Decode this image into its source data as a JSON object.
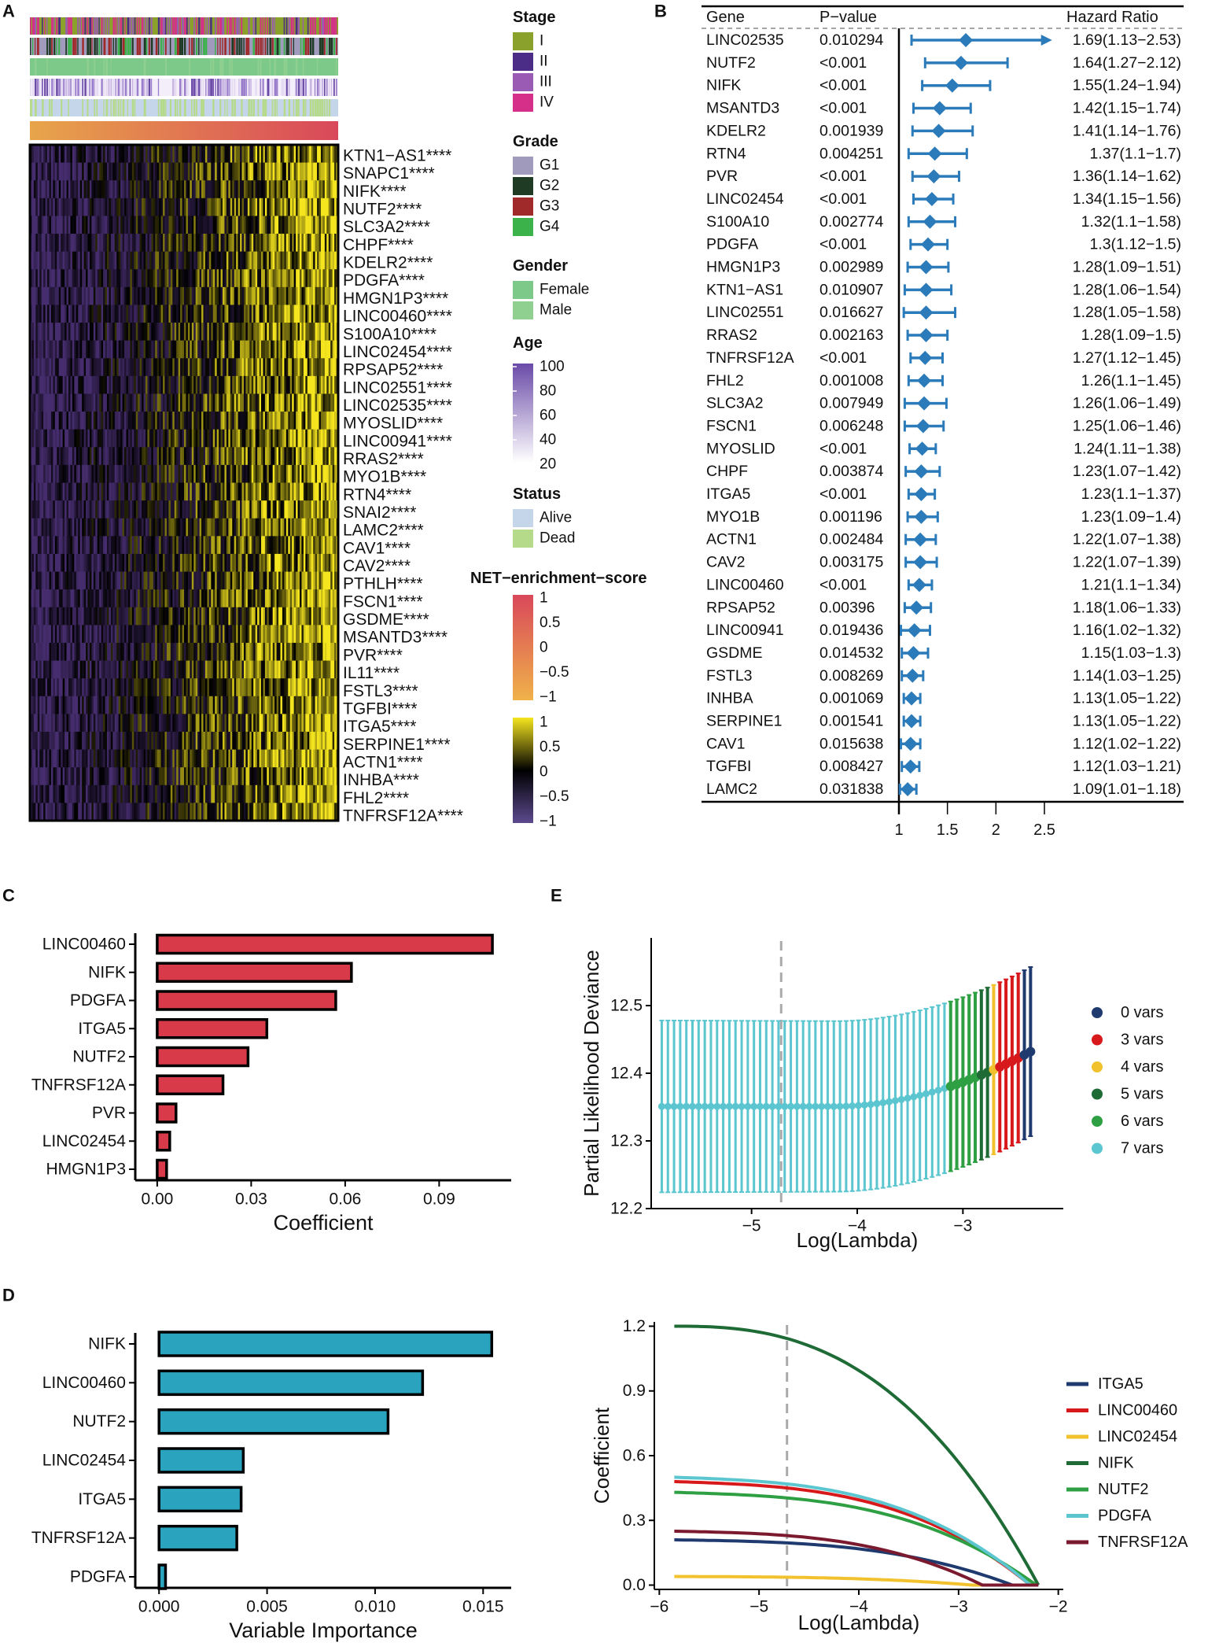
{
  "panel_labels": [
    "A",
    "B",
    "C",
    "D",
    "E"
  ],
  "colors": {
    "forest": "#2b7bba",
    "bar_c": "#d93a49",
    "bar_d": "#2aa3bf",
    "heat_low": "#2a1a4a",
    "heat_mid": "#000000",
    "heat_high": "#f5e51f"
  },
  "chart_data": [
    {
      "id": "A",
      "type": "heatmap",
      "genes": [
        "KTN1−AS1****",
        "SNAPC1****",
        "NIFK****",
        "NUTF2****",
        "SLC3A2****",
        "CHPF****",
        "KDELR2****",
        "PDGFA****",
        "HMGN1P3****",
        "LINC00460****",
        "S100A10****",
        "LINC02454****",
        "RPSAP52****",
        "LINC02551****",
        "LINC02535****",
        "MYOSLID****",
        "LINC00941****",
        "RRAS2****",
        "MYO1B****",
        "RTN4****",
        "SNAI2****",
        "LAMC2****",
        "CAV1****",
        "CAV2****",
        "PTHLH****",
        "FSCN1****",
        "GSDME****",
        "MSANTD3****",
        "PVR****",
        "IL11****",
        "FSTL3****",
        "TGFBI****",
        "ITGA5****",
        "SERPINE1****",
        "ACTN1****",
        "INHBA****",
        "FHL2****",
        "TNFRSF12A****"
      ],
      "legends": [
        {
          "title": "Stage",
          "items": [
            {
              "label": "I",
              "color": "#8aa12b"
            },
            {
              "label": "II",
              "color": "#4b2c86"
            },
            {
              "label": "III",
              "color": "#9a5bb5"
            },
            {
              "label": "IV",
              "color": "#d62f8a"
            }
          ]
        },
        {
          "title": "Grade",
          "items": [
            {
              "label": "G1",
              "color": "#a09abd"
            },
            {
              "label": "G2",
              "color": "#1f3b24"
            },
            {
              "label": "G3",
              "color": "#a02a2a"
            },
            {
              "label": "G4",
              "color": "#3bb34a"
            }
          ]
        },
        {
          "title": "Gender",
          "items": [
            {
              "label": "Female",
              "color": "#7cc98a"
            },
            {
              "label": "Male",
              "color": "#8fcf8f"
            }
          ]
        },
        {
          "title": "Status",
          "items": [
            {
              "label": "Alive",
              "color": "#c5d5ea"
            },
            {
              "label": "Dead",
              "color": "#b5db8a"
            }
          ]
        }
      ],
      "age_legend": {
        "title": "Age",
        "ticks": [
          "100",
          "80",
          "60",
          "40",
          "20"
        ]
      },
      "net_legend": {
        "title": "NET−enrichment−score",
        "ticks": [
          "1",
          "0.5",
          "0",
          "−0.5",
          "−1"
        ]
      },
      "expr_legend": {
        "ticks": [
          "1",
          "0.5",
          "0",
          "−0.5",
          "−1"
        ]
      }
    },
    {
      "id": "B",
      "type": "forest",
      "headers": {
        "gene": "Gene",
        "pvalue": "P−value",
        "hr": "Hazard Ratio"
      },
      "rows": [
        {
          "gene": "LINC02535",
          "p": "0.010294",
          "hr": 1.69,
          "lo": 1.13,
          "hi": 2.53,
          "label": "1.69(1.13−2.53)"
        },
        {
          "gene": "NUTF2",
          "p": "<0.001",
          "hr": 1.64,
          "lo": 1.27,
          "hi": 2.12,
          "label": "1.64(1.27−2.12)"
        },
        {
          "gene": "NIFK",
          "p": "<0.001",
          "hr": 1.55,
          "lo": 1.24,
          "hi": 1.94,
          "label": "1.55(1.24−1.94)"
        },
        {
          "gene": "MSANTD3",
          "p": "<0.001",
          "hr": 1.42,
          "lo": 1.15,
          "hi": 1.74,
          "label": "1.42(1.15−1.74)"
        },
        {
          "gene": "KDELR2",
          "p": "0.001939",
          "hr": 1.41,
          "lo": 1.14,
          "hi": 1.76,
          "label": "1.41(1.14−1.76)"
        },
        {
          "gene": "RTN4",
          "p": "0.004251",
          "hr": 1.37,
          "lo": 1.1,
          "hi": 1.7,
          "label": "1.37(1.1−1.7)"
        },
        {
          "gene": "PVR",
          "p": "<0.001",
          "hr": 1.36,
          "lo": 1.14,
          "hi": 1.62,
          "label": "1.36(1.14−1.62)"
        },
        {
          "gene": "LINC02454",
          "p": "<0.001",
          "hr": 1.34,
          "lo": 1.15,
          "hi": 1.56,
          "label": "1.34(1.15−1.56)"
        },
        {
          "gene": "S100A10",
          "p": "0.002774",
          "hr": 1.32,
          "lo": 1.1,
          "hi": 1.58,
          "label": "1.32(1.1−1.58)"
        },
        {
          "gene": "PDGFA",
          "p": "<0.001",
          "hr": 1.3,
          "lo": 1.12,
          "hi": 1.5,
          "label": "1.3(1.12−1.5)"
        },
        {
          "gene": "HMGN1P3",
          "p": "0.002989",
          "hr": 1.28,
          "lo": 1.09,
          "hi": 1.51,
          "label": "1.28(1.09−1.51)"
        },
        {
          "gene": "KTN1−AS1",
          "p": "0.010907",
          "hr": 1.28,
          "lo": 1.06,
          "hi": 1.54,
          "label": "1.28(1.06−1.54)"
        },
        {
          "gene": "LINC02551",
          "p": "0.016627",
          "hr": 1.28,
          "lo": 1.05,
          "hi": 1.58,
          "label": "1.28(1.05−1.58)"
        },
        {
          "gene": "RRAS2",
          "p": "0.002163",
          "hr": 1.28,
          "lo": 1.09,
          "hi": 1.5,
          "label": "1.28(1.09−1.5)"
        },
        {
          "gene": "TNFRSF12A",
          "p": "<0.001",
          "hr": 1.27,
          "lo": 1.12,
          "hi": 1.45,
          "label": "1.27(1.12−1.45)"
        },
        {
          "gene": "FHL2",
          "p": "0.001008",
          "hr": 1.26,
          "lo": 1.1,
          "hi": 1.45,
          "label": "1.26(1.1−1.45)"
        },
        {
          "gene": "SLC3A2",
          "p": "0.007949",
          "hr": 1.26,
          "lo": 1.06,
          "hi": 1.49,
          "label": "1.26(1.06−1.49)"
        },
        {
          "gene": "FSCN1",
          "p": "0.006248",
          "hr": 1.25,
          "lo": 1.06,
          "hi": 1.46,
          "label": "1.25(1.06−1.46)"
        },
        {
          "gene": "MYOSLID",
          "p": "<0.001",
          "hr": 1.24,
          "lo": 1.11,
          "hi": 1.38,
          "label": "1.24(1.11−1.38)"
        },
        {
          "gene": "CHPF",
          "p": "0.003874",
          "hr": 1.23,
          "lo": 1.07,
          "hi": 1.42,
          "label": "1.23(1.07−1.42)"
        },
        {
          "gene": "ITGA5",
          "p": "<0.001",
          "hr": 1.23,
          "lo": 1.1,
          "hi": 1.37,
          "label": "1.23(1.1−1.37)"
        },
        {
          "gene": "MYO1B",
          "p": "0.001196",
          "hr": 1.23,
          "lo": 1.09,
          "hi": 1.4,
          "label": "1.23(1.09−1.4)"
        },
        {
          "gene": "ACTN1",
          "p": "0.002484",
          "hr": 1.22,
          "lo": 1.07,
          "hi": 1.38,
          "label": "1.22(1.07−1.38)"
        },
        {
          "gene": "CAV2",
          "p": "0.003175",
          "hr": 1.22,
          "lo": 1.07,
          "hi": 1.39,
          "label": "1.22(1.07−1.39)"
        },
        {
          "gene": "LINC00460",
          "p": "<0.001",
          "hr": 1.21,
          "lo": 1.1,
          "hi": 1.34,
          "label": "1.21(1.1−1.34)"
        },
        {
          "gene": "RPSAP52",
          "p": "0.00396",
          "hr": 1.18,
          "lo": 1.06,
          "hi": 1.33,
          "label": "1.18(1.06−1.33)"
        },
        {
          "gene": "LINC00941",
          "p": "0.019436",
          "hr": 1.16,
          "lo": 1.02,
          "hi": 1.32,
          "label": "1.16(1.02−1.32)"
        },
        {
          "gene": "GSDME",
          "p": "0.014532",
          "hr": 1.15,
          "lo": 1.03,
          "hi": 1.3,
          "label": "1.15(1.03−1.3)"
        },
        {
          "gene": "FSTL3",
          "p": "0.008269",
          "hr": 1.14,
          "lo": 1.03,
          "hi": 1.25,
          "label": "1.14(1.03−1.25)"
        },
        {
          "gene": "INHBA",
          "p": "0.001069",
          "hr": 1.13,
          "lo": 1.05,
          "hi": 1.22,
          "label": "1.13(1.05−1.22)"
        },
        {
          "gene": "SERPINE1",
          "p": "0.001541",
          "hr": 1.13,
          "lo": 1.05,
          "hi": 1.22,
          "label": "1.13(1.05−1.22)"
        },
        {
          "gene": "CAV1",
          "p": "0.015638",
          "hr": 1.12,
          "lo": 1.02,
          "hi": 1.22,
          "label": "1.12(1.02−1.22)"
        },
        {
          "gene": "TGFBI",
          "p": "0.008427",
          "hr": 1.12,
          "lo": 1.03,
          "hi": 1.21,
          "label": "1.12(1.03−1.21)"
        },
        {
          "gene": "LAMC2",
          "p": "0.031838",
          "hr": 1.09,
          "lo": 1.01,
          "hi": 1.18,
          "label": "1.09(1.01−1.18)"
        }
      ],
      "xticks": [
        1,
        1.5,
        2,
        2.5
      ],
      "xlim": [
        1,
        2.55
      ]
    },
    {
      "id": "C",
      "type": "bar",
      "orientation": "horizontal",
      "categories": [
        "LINC00460",
        "NIFK",
        "PDGFA",
        "ITGA5",
        "NUTF2",
        "TNFRSF12A",
        "PVR",
        "LINC02454",
        "HMGN1P3"
      ],
      "values": [
        0.107,
        0.062,
        0.057,
        0.035,
        0.029,
        0.021,
        0.006,
        0.004,
        0.003
      ],
      "xlabel": "Coefficient",
      "xticks": [
        0,
        0.03,
        0.06,
        0.09
      ],
      "xtick_labels": [
        "0.00",
        "0.03",
        "0.06",
        "0.09"
      ],
      "xlim": [
        -0.007,
        0.113
      ]
    },
    {
      "id": "D",
      "type": "bar",
      "orientation": "horizontal",
      "categories": [
        "NIFK",
        "LINC00460",
        "NUTF2",
        "LINC02454",
        "ITGA5",
        "TNFRSF12A",
        "PDGFA"
      ],
      "values": [
        0.0154,
        0.0122,
        0.0106,
        0.0039,
        0.0038,
        0.0036,
        0.0003
      ],
      "xlabel": "Variable Importance",
      "xticks": [
        0,
        0.005,
        0.01,
        0.015
      ],
      "xtick_labels": [
        "0.000",
        "0.005",
        "0.010",
        "0.015"
      ],
      "xlim": [
        -0.0011,
        0.0163
      ]
    },
    {
      "id": "E",
      "type": "scatter",
      "subtype": "cv-error-bars",
      "xlabel": "Log(Lambda)",
      "ylabel": "Partial Likelihood Deviance",
      "xlim": [
        -5.95,
        -2.05
      ],
      "ylim": [
        12.2,
        12.6
      ],
      "xticks": [
        -5,
        -4,
        -3
      ],
      "xtick_labels": [
        "−5",
        "−4",
        "−3"
      ],
      "yticks": [
        12.2,
        12.3,
        12.4,
        12.5
      ],
      "yticks_labels": [
        "12.2",
        "12.3",
        "12.4",
        "12.5"
      ],
      "vline": -4.72,
      "legend": [
        {
          "label": "0 vars",
          "color": "#1f3a6e"
        },
        {
          "label": "3 vars",
          "color": "#d7191c"
        },
        {
          "label": "4 vars",
          "color": "#f2c12e"
        },
        {
          "label": "5 vars",
          "color": "#1e6b36"
        },
        {
          "label": "6 vars",
          "color": "#2ea043"
        },
        {
          "label": "7 vars",
          "color": "#5bc6cf"
        }
      ],
      "points": {
        "x_start": -5.85,
        "x_end": -2.36,
        "n": 61,
        "series_breaks": [
          {
            "vars": 7,
            "upto": -3.12
          },
          {
            "vars": 6,
            "upto": -2.86
          },
          {
            "vars": 5,
            "upto": -2.76
          },
          {
            "vars": 4,
            "upto": -2.66
          },
          {
            "vars": 3,
            "upto": -2.46
          },
          {
            "vars": 0,
            "upto": -2.3
          }
        ],
        "mean_min": 12.351,
        "mean_max": 12.432,
        "half_width_start": 0.127,
        "half_width_end": 0.125
      }
    },
    {
      "id": "F",
      "type": "line",
      "xlabel": "Log(Lambda)",
      "ylabel": "Coefficient",
      "xlim": [
        -6.05,
        -1.95
      ],
      "ylim": [
        -0.02,
        1.22
      ],
      "xticks": [
        -6,
        -5,
        -4,
        -3,
        -2
      ],
      "xtick_labels": [
        "−6",
        "−5",
        "−4",
        "−3",
        "−2"
      ],
      "yticks": [
        0,
        0.3,
        0.6,
        0.9,
        1.2
      ],
      "ytick_labels": [
        "0.0",
        "0.3",
        "0.6",
        "0.9",
        "1.2"
      ],
      "vline": -4.72,
      "series": [
        {
          "name": "ITGA5",
          "color": "#1f3a6e",
          "start": 0.21,
          "end_x": -2.46
        },
        {
          "name": "LINC00460",
          "color": "#d7191c",
          "start": 0.48,
          "end_x": -2.28
        },
        {
          "name": "LINC02454",
          "color": "#f2c12e",
          "start": 0.04,
          "end_x": -2.86
        },
        {
          "name": "NIFK",
          "color": "#1e6b36",
          "start": 1.2,
          "end_x": -2.2
        },
        {
          "name": "NUTF2",
          "color": "#2ea043",
          "start": 0.43,
          "end_x": -2.22
        },
        {
          "name": "PDGFA",
          "color": "#5bc6cf",
          "start": 0.5,
          "end_x": -2.28
        },
        {
          "name": "TNFRSF12A",
          "color": "#7b1a2e",
          "start": 0.25,
          "end_x": -2.76
        }
      ]
    }
  ]
}
